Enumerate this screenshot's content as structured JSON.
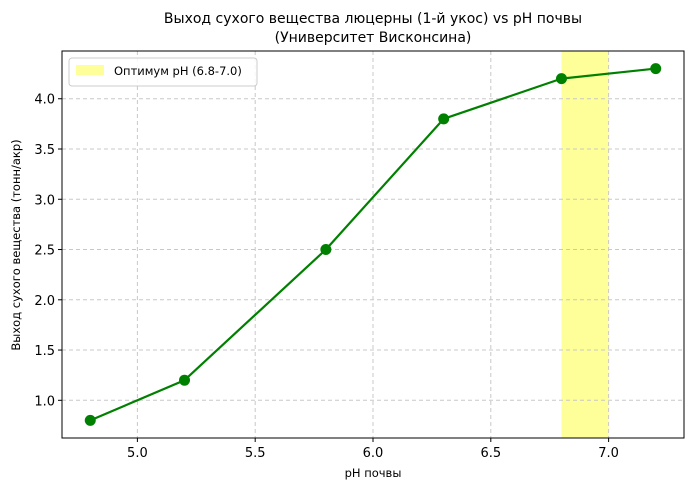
{
  "chart_data": {
    "type": "line",
    "title_lines": [
      "Выход сухого вещества люцерны (1-й укос) vs pH почвы",
      "(Университет Висконсина)"
    ],
    "xlabel": "pH почвы",
    "ylabel": "Выход сухого вещества (тонн/акр)",
    "x": [
      4.8,
      5.2,
      5.8,
      6.3,
      6.8,
      7.2
    ],
    "series": [
      {
        "values": [
          0.8,
          1.2,
          2.5,
          3.8,
          4.2,
          4.3
        ],
        "color": "#008000"
      }
    ],
    "shaded_region": {
      "x_start": 6.8,
      "x_end": 7.0,
      "label": "Оптимум pH (6.8-7.0)",
      "color": "#ffff99"
    },
    "xlim": [
      4.68,
      7.32
    ],
    "ylim": [
      0.625,
      4.475
    ],
    "x_ticks": [
      5.0,
      5.5,
      6.0,
      6.5,
      7.0
    ],
    "x_tick_labels": [
      "5.0",
      "5.5",
      "6.0",
      "6.5",
      "7.0"
    ],
    "y_ticks": [
      1.0,
      1.5,
      2.0,
      2.5,
      3.0,
      3.5,
      4.0
    ],
    "y_tick_labels": [
      "1.0",
      "1.5",
      "2.0",
      "2.5",
      "3.0",
      "3.5",
      "4.0"
    ],
    "grid": true,
    "legend_position": "top-left"
  }
}
